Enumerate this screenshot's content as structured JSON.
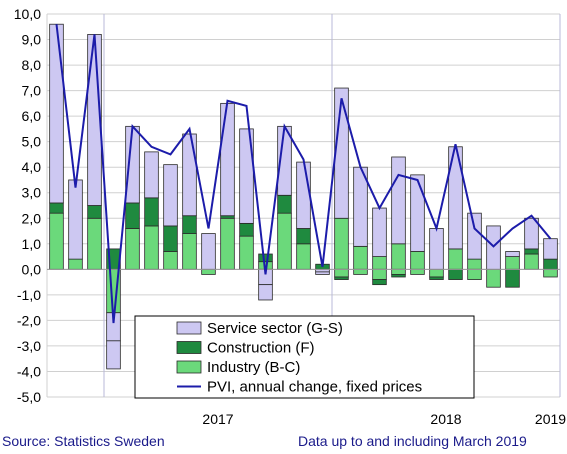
{
  "chart_data": {
    "type": "bar",
    "stacked": true,
    "ylim": [
      -5,
      10
    ],
    "yticks": [
      "10,0",
      "9,0",
      "8,0",
      "7,0",
      "6,0",
      "5,0",
      "4,0",
      "3,0",
      "2,0",
      "1,0",
      "0,0",
      "-1,0",
      "-2,0",
      "-3,0",
      "-4,0",
      "-5,0"
    ],
    "year_labels": [
      {
        "label": "2017",
        "index": 8.5
      },
      {
        "label": "2018",
        "index": 20.5
      },
      {
        "label": "2019",
        "index": 26
      }
    ],
    "year_dividers": [
      2.5,
      14.5,
      26.5
    ],
    "grid": true,
    "legend_position": "bottom-right",
    "series": [
      {
        "name": "Service sector (G-S)",
        "type": "bar",
        "color": "#cdc8f2",
        "values": [
          7.0,
          3.1,
          6.7,
          -1.1,
          3.0,
          1.8,
          2.4,
          3.2,
          1.4,
          4.4,
          3.7,
          -0.6,
          2.7,
          2.6,
          -0.1,
          5.1,
          3.1,
          1.9,
          3.4,
          3.0,
          1.6,
          4.0,
          1.8,
          1.7,
          0.2,
          1.2,
          0.8
        ],
        "neg": [
          0,
          0,
          0,
          -1.1,
          0,
          0,
          0,
          0,
          0,
          0,
          0,
          -0.6,
          0,
          0,
          -0.1,
          0,
          0,
          0,
          0,
          0,
          0,
          0,
          0,
          0,
          0,
          0,
          0
        ]
      },
      {
        "name": "Construction (F)",
        "type": "bar",
        "color": "#1f8a3f",
        "values": [
          0.4,
          0.0,
          0.5,
          0.8,
          1.0,
          1.1,
          1.0,
          0.7,
          0.0,
          0.1,
          0.5,
          0.3,
          0.7,
          0.6,
          0.2,
          0.0,
          0.0,
          0.0,
          0.0,
          0.0,
          0.0,
          0.0,
          0.0,
          0.0,
          -0.7,
          0.2,
          0.4
        ],
        "neg": [
          0,
          0,
          0,
          0,
          0,
          0,
          0,
          0,
          0,
          0,
          0,
          0,
          0,
          0,
          0,
          -0.1,
          0,
          -0.2,
          -0.1,
          0,
          -0.1,
          -0.4,
          0,
          0,
          0,
          0,
          0
        ]
      },
      {
        "name": "Industry (B-C)",
        "type": "bar",
        "color": "#6bd97b",
        "values": [
          2.2,
          0.4,
          2.0,
          -1.7,
          1.6,
          1.7,
          0.7,
          1.4,
          -0.2,
          2.0,
          1.3,
          0.3,
          2.2,
          1.0,
          0.0,
          2.0,
          0.9,
          0.5,
          1.0,
          0.7,
          0.0,
          0.8,
          0.4,
          -0.7,
          0.5,
          0.6,
          -0.3
        ],
        "neg": [
          0,
          0,
          0,
          0,
          0,
          0,
          0,
          0,
          0,
          0,
          0,
          0,
          0,
          0,
          0,
          -0.3,
          -0.2,
          -0.4,
          -0.2,
          -0.2,
          -0.3,
          0,
          -0.4,
          0,
          0,
          0,
          0
        ]
      },
      {
        "name": "PVI, annual change, fixed prices",
        "type": "line",
        "color": "#1c1caa",
        "values": [
          9.6,
          3.2,
          9.2,
          -2.1,
          5.6,
          4.8,
          4.5,
          5.5,
          1.6,
          6.6,
          6.4,
          -0.2,
          5.6,
          4.3,
          0.1,
          6.7,
          4.0,
          2.4,
          3.7,
          3.5,
          1.6,
          4.9,
          1.6,
          0.9,
          1.6,
          2.1,
          1.2
        ]
      }
    ]
  },
  "footer": {
    "source": "Source: Statistics Sweden",
    "note": "Data up to and including March 2019"
  }
}
